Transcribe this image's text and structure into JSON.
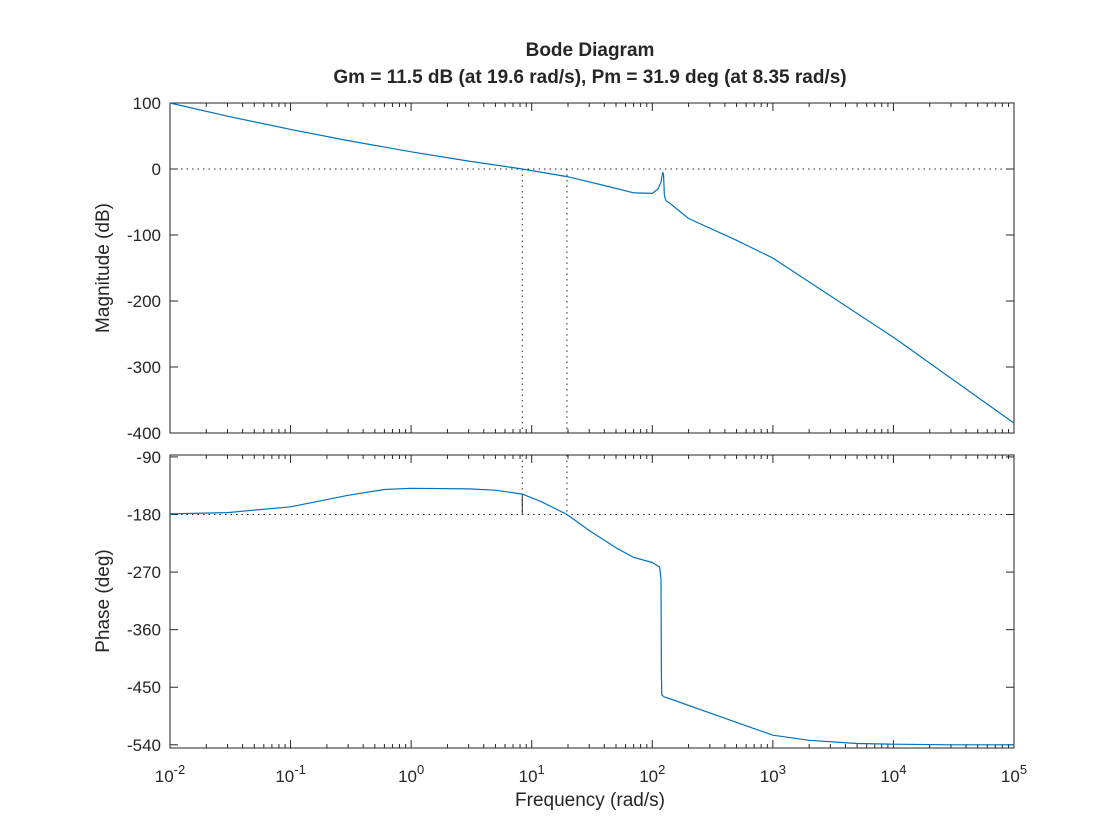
{
  "colors": {
    "series": "#0072bd",
    "axis": "#262626",
    "reference": "#262626",
    "background": "#ffffff"
  },
  "chart_data": [
    {
      "type": "line",
      "title": "Bode Diagram",
      "subtitle": "Gm = 11.5 dB (at 19.6 rad/s),  Pm = 31.9 deg (at 8.35 rad/s)",
      "xlabel": "",
      "ylabel": "Magnitude (dB)",
      "xscale": "log",
      "xlim": [
        0.01,
        100000
      ],
      "ylim": [
        -400,
        100
      ],
      "yticks": [
        "100",
        "0",
        "-100",
        "-200",
        "-300",
        "-400"
      ],
      "ytick_values": [
        100,
        0,
        -100,
        -200,
        -300,
        -400
      ],
      "grid": false,
      "reference_lines": {
        "horizontal": [
          0
        ],
        "vertical": [
          8.35,
          19.6
        ]
      },
      "series": [
        {
          "x": [
            0.01,
            0.03,
            0.1,
            0.3,
            1,
            3,
            8.35,
            19.6,
            40,
            70,
            100,
            112,
            118,
            122,
            124,
            126,
            130,
            140,
            200,
            500,
            1000,
            10000,
            100000
          ],
          "y": [
            100,
            80,
            60,
            43,
            26,
            12,
            0,
            -11.5,
            -25,
            -36,
            -37,
            -30,
            -20,
            -5,
            -8,
            -40,
            -48,
            -52,
            -75,
            -108,
            -135,
            -255,
            -385
          ]
        }
      ]
    },
    {
      "type": "line",
      "title": "",
      "xlabel": "Frequency  (rad/s)",
      "ylabel": "Phase (deg)",
      "xscale": "log",
      "xlim": [
        0.01,
        100000
      ],
      "ylim": [
        -545,
        -87
      ],
      "yticks": [
        "-90",
        "-180",
        "-270",
        "-360",
        "-450",
        "-540"
      ],
      "ytick_values": [
        -90,
        -180,
        -270,
        -360,
        -450,
        -540
      ],
      "xticks": [
        "10-2",
        "10-1",
        "100",
        "101",
        "102",
        "103",
        "104",
        "105"
      ],
      "xtick_values": [
        0.01,
        0.1,
        1,
        10,
        100,
        1000,
        10000,
        100000
      ],
      "grid": false,
      "reference_lines": {
        "horizontal": [
          -180
        ],
        "vertical": [
          8.35,
          19.6
        ]
      },
      "phase_margin_marker": {
        "x": 8.35,
        "from": -180,
        "to": -148.1
      },
      "series": [
        {
          "x": [
            0.01,
            0.03,
            0.1,
            0.3,
            0.6,
            1,
            3,
            5,
            8.35,
            12,
            19.6,
            30,
            50,
            70,
            100,
            115,
            118,
            119,
            120,
            125,
            150,
            250,
            500,
            1000,
            2000,
            5000,
            10000,
            30000,
            100000
          ],
          "y": [
            -179,
            -177,
            -168,
            -150,
            -141,
            -139,
            -140,
            -142,
            -148.1,
            -160,
            -180,
            -205,
            -232,
            -247,
            -255,
            -262,
            -280,
            -430,
            -462,
            -465,
            -470,
            -485,
            -505,
            -525,
            -533,
            -538,
            -539,
            -540,
            -540
          ]
        }
      ]
    }
  ]
}
